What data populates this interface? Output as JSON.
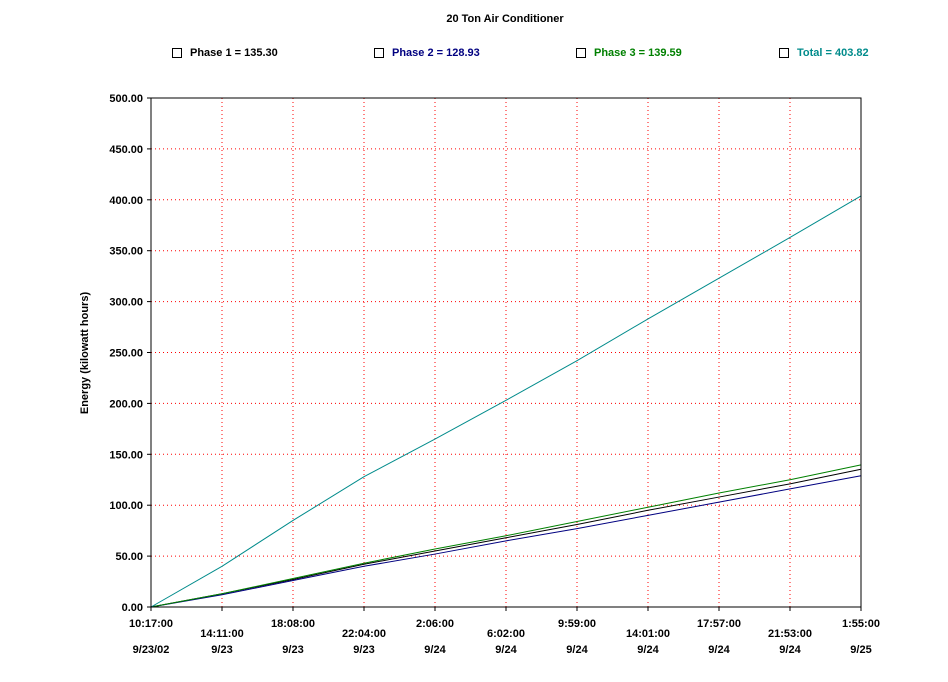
{
  "chart_data": {
    "type": "line",
    "title": "20 Ton Air Conditioner",
    "ylabel": "Energy (kilowatt hours)",
    "xlabel": "",
    "ylim": [
      0,
      500
    ],
    "yticks": [
      "0.00",
      "50.00",
      "100.00",
      "150.00",
      "200.00",
      "250.00",
      "300.00",
      "350.00",
      "400.00",
      "450.00",
      "500.00"
    ],
    "xticks": [
      {
        "time": "10:17:00",
        "date": "9/23/02"
      },
      {
        "time": "14:11:00",
        "date": "9/23"
      },
      {
        "time": "18:08:00",
        "date": "9/23"
      },
      {
        "time": "22:04:00",
        "date": "9/23"
      },
      {
        "time": "2:06:00",
        "date": "9/24"
      },
      {
        "time": "6:02:00",
        "date": "9/24"
      },
      {
        "time": "9:59:00",
        "date": "9/24"
      },
      {
        "time": "14:01:00",
        "date": "9/24"
      },
      {
        "time": "17:57:00",
        "date": "9/24"
      },
      {
        "time": "21:53:00",
        "date": "9/24"
      },
      {
        "time": "1:55:00",
        "date": "9/25"
      }
    ],
    "grid": true,
    "legend_position": "top",
    "x": [
      "9/23 10:17",
      "9/23 14:11",
      "9/23 18:08",
      "9/23 22:04",
      "9/24 2:06",
      "9/24 6:02",
      "9/24 9:59",
      "9/24 14:01",
      "9/24 17:57",
      "9/24 21:53",
      "9/25 1:55"
    ],
    "series": [
      {
        "name": "Phase 1",
        "legend": "Phase 1 = 135.30",
        "color": "#000000",
        "values": [
          0,
          13,
          27,
          42,
          55,
          68,
          81,
          95,
          108,
          121,
          135.3
        ]
      },
      {
        "name": "Phase 2",
        "legend": "Phase 2 = 128.93",
        "color": "#000080",
        "values": [
          0,
          12,
          26,
          40,
          52,
          65,
          77,
          90,
          103,
          116,
          128.93
        ]
      },
      {
        "name": "Phase 3",
        "legend": "Phase 3 = 139.59",
        "color": "#008000",
        "values": [
          0,
          13,
          28,
          43,
          57,
          70,
          84,
          98,
          112,
          125,
          139.59
        ]
      },
      {
        "name": "Total",
        "legend": "Total = 403.82",
        "color": "#008B8B",
        "values": [
          0,
          40,
          85,
          128,
          165,
          203,
          242,
          283,
          323,
          363,
          403.82
        ]
      }
    ]
  }
}
